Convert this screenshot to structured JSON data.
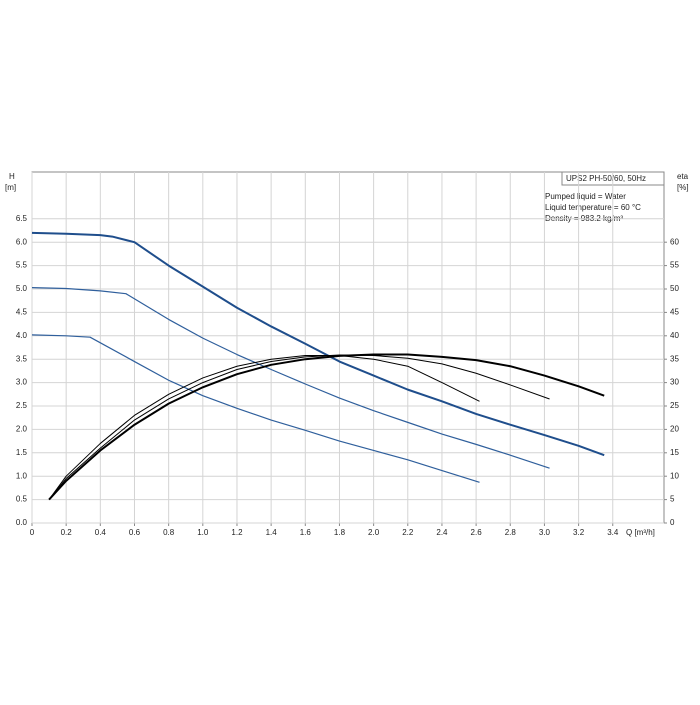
{
  "chart_data": {
    "type": "line",
    "title": "UPS2 PH-50/60, 50Hz",
    "annotations": [
      "Pumped liquid = Water",
      "Liquid temperature = 60 °C",
      "Density = 983.2 kg/m³"
    ],
    "y_label": "H",
    "y_unit": "[m]",
    "y2_label": "eta",
    "y2_unit": "[%]",
    "x_label": "Q [m³/h]",
    "xlim": [
      0,
      3.7
    ],
    "ylim": [
      0,
      7.5
    ],
    "y2lim": [
      0,
      75
    ],
    "grid": true,
    "xticks": [
      0,
      0.2,
      0.4,
      0.6,
      0.8,
      {
        "value": 1,
        "label": "1.0"
      },
      1.2,
      1.4,
      1.6,
      1.8,
      {
        "value": 2,
        "label": "2.0"
      },
      2.2,
      2.4,
      2.6,
      2.8,
      {
        "value": 3,
        "label": "3.0"
      },
      3.2,
      3.4
    ],
    "yticks": [
      {
        "value": 0,
        "label": "0.0"
      },
      0.5,
      {
        "value": 1,
        "label": "1.0"
      },
      1.5,
      {
        "value": 2,
        "label": "2.0"
      },
      2.5,
      {
        "value": 3,
        "label": "3.0"
      },
      3.5,
      {
        "value": 4,
        "label": "4.0"
      },
      4.5,
      {
        "value": 5,
        "label": "5.0"
      },
      5.5,
      {
        "value": 6,
        "label": "6.0"
      },
      6.5
    ],
    "y2ticks": [
      0,
      5,
      10,
      15,
      20,
      25,
      30,
      35,
      40,
      45,
      50,
      55,
      60
    ],
    "series": [
      {
        "color": "#1f4e8c",
        "line_width": 2,
        "x": [
          0,
          0.2,
          0.4,
          0.47,
          0.6,
          0.8,
          1.0,
          1.2,
          1.4,
          1.6,
          1.8,
          2.0,
          2.2,
          2.4,
          2.6,
          2.8,
          3.0,
          3.2,
          3.35
        ],
        "values": [
          6.2,
          6.18,
          6.15,
          6.12,
          6.0,
          5.5,
          5.05,
          4.6,
          4.2,
          3.83,
          3.45,
          3.15,
          2.85,
          2.6,
          2.33,
          2.1,
          1.88,
          1.65,
          1.45
        ]
      },
      {
        "color": "#2f5f9c",
        "line_width": 1.2,
        "x": [
          0,
          0.2,
          0.4,
          0.55,
          0.8,
          1.0,
          1.2,
          1.4,
          1.6,
          1.8,
          2.0,
          2.2,
          2.4,
          2.6,
          2.8,
          3.03
        ],
        "values": [
          5.03,
          5.01,
          4.96,
          4.9,
          4.35,
          3.95,
          3.6,
          3.28,
          2.97,
          2.67,
          2.4,
          2.15,
          1.9,
          1.68,
          1.45,
          1.17
        ]
      },
      {
        "color": "#2f5f9c",
        "line_width": 1.2,
        "x": [
          0,
          0.2,
          0.34,
          0.6,
          0.8,
          1.0,
          1.2,
          1.4,
          1.6,
          1.8,
          2.0,
          2.2,
          2.4,
          2.62
        ],
        "values": [
          4.02,
          4.0,
          3.97,
          3.45,
          3.05,
          2.72,
          2.45,
          2.2,
          1.98,
          1.75,
          1.55,
          1.35,
          1.12,
          0.87
        ]
      },
      {
        "color": "#000000",
        "line_width": 1,
        "axis": "y2",
        "x": [
          0.1,
          0.2,
          0.4,
          0.6,
          0.8,
          1.0,
          1.2,
          1.4,
          1.6,
          1.8,
          2.0,
          2.2,
          2.4,
          2.62
        ],
        "values": [
          5,
          10,
          17,
          23,
          27.5,
          31,
          33.5,
          35,
          35.8,
          35.8,
          35,
          33.5,
          30,
          26
        ]
      },
      {
        "color": "#000000",
        "line_width": 1,
        "axis": "y2",
        "x": [
          0.1,
          0.2,
          0.4,
          0.6,
          0.8,
          1.0,
          1.2,
          1.4,
          1.6,
          1.8,
          2.0,
          2.2,
          2.4,
          2.6,
          2.8,
          3.03
        ],
        "values": [
          5,
          9.5,
          16,
          22,
          26.5,
          30,
          32.8,
          34.5,
          35.5,
          35.9,
          35.8,
          35.2,
          34,
          32,
          29.5,
          26.5
        ]
      },
      {
        "color": "#000000",
        "line_width": 2,
        "axis": "y2",
        "x": [
          0.1,
          0.2,
          0.4,
          0.6,
          0.8,
          1.0,
          1.2,
          1.4,
          1.6,
          1.8,
          2.0,
          2.2,
          2.4,
          2.6,
          2.8,
          3.0,
          3.2,
          3.35
        ],
        "values": [
          5,
          9,
          15.5,
          21,
          25.5,
          29,
          31.8,
          33.8,
          35,
          35.7,
          36,
          36,
          35.5,
          34.8,
          33.5,
          31.5,
          29.2,
          27.2
        ]
      }
    ]
  }
}
